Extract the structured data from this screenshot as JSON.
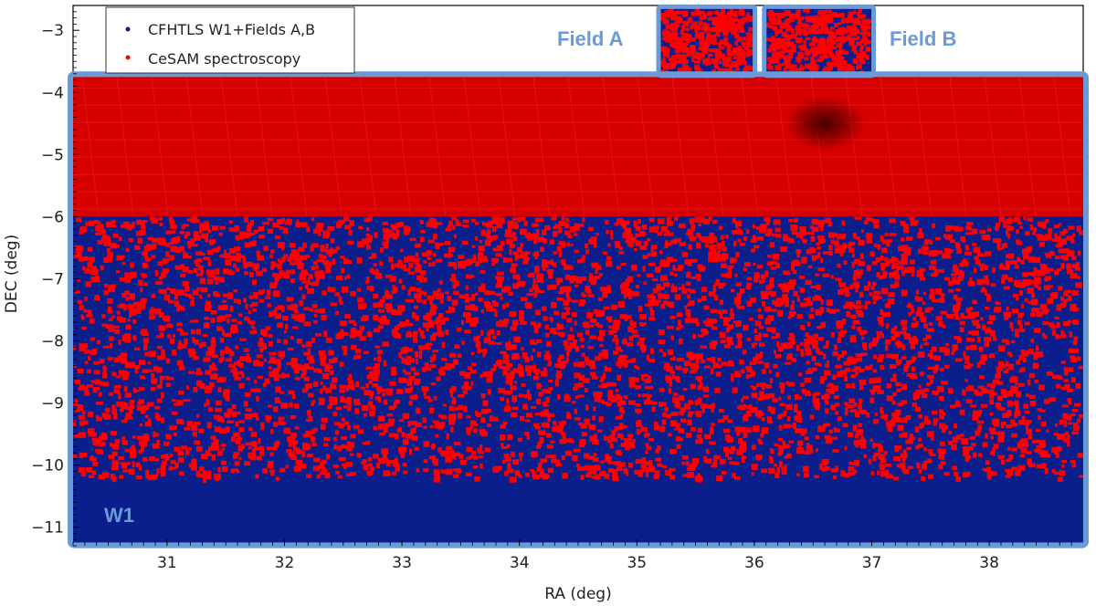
{
  "chart_data": {
    "type": "scatter",
    "xlabel": "RA  (deg)",
    "ylabel": "DEC  (deg)",
    "xlim": [
      30.2,
      38.8
    ],
    "ylim": [
      -11.3,
      -2.6
    ],
    "x_ticks": [
      "31",
      "32",
      "33",
      "34",
      "35",
      "36",
      "37",
      "38"
    ],
    "y_ticks": [
      "-3",
      "-4",
      "-5",
      "-6",
      "-7",
      "-8",
      "-9",
      "-10",
      "-11"
    ],
    "grid": false,
    "legend_position": "top-left",
    "series": [
      {
        "name": "CFHTLS W1+Fields A,B",
        "color": "#0a1e8c"
      },
      {
        "name": "CeSAM spectroscopy",
        "color": "#ff0000"
      }
    ],
    "regions": {
      "w1": {
        "label": "W1",
        "ra": [
          30.2,
          38.8
        ],
        "dec": [
          -11.25,
          -3.75
        ]
      },
      "field_a": {
        "label": "Field A",
        "ra": [
          35.2,
          35.99
        ],
        "dec": [
          -3.7,
          -2.65
        ]
      },
      "field_b": {
        "label": "Field B",
        "ra": [
          36.1,
          37.0
        ],
        "dec": [
          -3.7,
          -2.65
        ]
      },
      "dense_band": {
        "dec": [
          -6.0,
          -3.75
        ]
      },
      "blue_only_band": {
        "dec": [
          -11.25,
          -10.25
        ]
      }
    },
    "region_color": "#6a9ad8"
  }
}
